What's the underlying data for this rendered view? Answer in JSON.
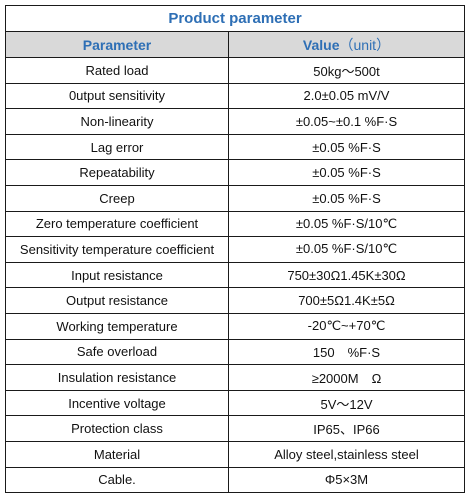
{
  "title": "Product parameter",
  "headers": {
    "parameter": "Parameter",
    "value": "Value",
    "value_unit": "（unit）"
  },
  "rows": [
    {
      "parameter": "Rated load",
      "value": "50kg～500t"
    },
    {
      "parameter": "0utput sensitivity",
      "value": "2.0±0.05 mV/V"
    },
    {
      "parameter": "Non-linearity",
      "value": "±0.05~±0.1 %F·S"
    },
    {
      "parameter": "Lag error",
      "value": "±0.05 %F·S"
    },
    {
      "parameter": "Repeatability",
      "value": "±0.05 %F·S"
    },
    {
      "parameter": "Creep",
      "value": "±0.05 %F·S"
    },
    {
      "parameter": "Zero temperature coefficient",
      "value": "±0.05 %F·S/10℃"
    },
    {
      "parameter": "Sensitivity temperature coefficient",
      "value": "±0.05 %F·S/10℃"
    },
    {
      "parameter": "Input resistance",
      "value": "750±30Ω1.45K±30Ω"
    },
    {
      "parameter": "Output resistance",
      "value": "700±5Ω1.4K±5Ω"
    },
    {
      "parameter": "Working temperature",
      "value": "-20℃~+70℃"
    },
    {
      "parameter": "Safe overload",
      "value": "150　%F·S"
    },
    {
      "parameter": "Insulation resistance",
      "value": "≥2000M　Ω"
    },
    {
      "parameter": "Incentive voltage",
      "value": "5V～12V"
    },
    {
      "parameter": "Protection class",
      "value": "IP65、IP66"
    },
    {
      "parameter": "Material",
      "value": "Alloy steel,stainless steel"
    },
    {
      "parameter": "Cable.",
      "value": "Φ5×3M"
    }
  ],
  "colors": {
    "title": "#2e6fb5",
    "header_bg": "#d9d9d9",
    "border": "#1a1a1a",
    "text": "#111111"
  }
}
